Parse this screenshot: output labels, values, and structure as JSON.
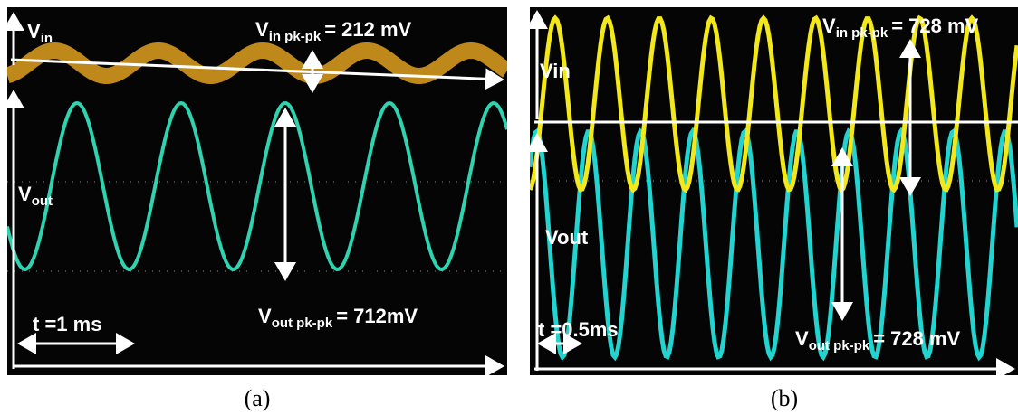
{
  "panels": [
    {
      "vin_label": {
        "main": "V",
        "sub": "in"
      },
      "vin_measure": {
        "main": "V",
        "sub": "in pk-pk",
        "value": "= 212 mV"
      },
      "vout_label": {
        "main": "V",
        "sub": "out"
      },
      "vout_measure": {
        "main": "V",
        "sub": "out pk-pk",
        "value": "= 712mV"
      },
      "time": "t =1 ms",
      "caption": "(a)"
    },
    {
      "vin_label": {
        "main": "Vin"
      },
      "vin_measure": {
        "main": "V",
        "sub": "in pk-pk",
        "value": "= 728 mV"
      },
      "vout_label": {
        "main": "Vout"
      },
      "vout_measure": {
        "main": "V",
        "sub": "out pk-pk",
        "value": "= 728 mV"
      },
      "time": "t =0.5ms",
      "caption": "(b)"
    }
  ]
}
